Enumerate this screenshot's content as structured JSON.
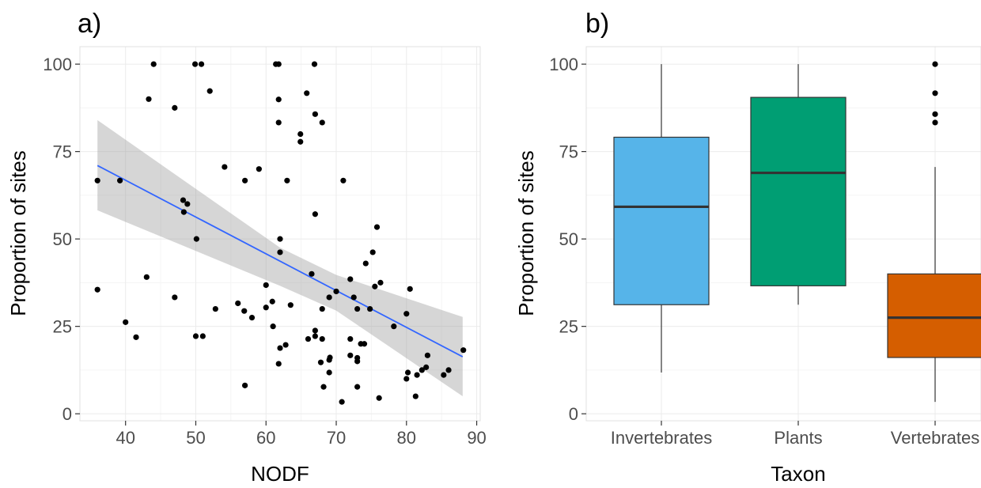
{
  "chart_data": [
    {
      "panel_label": "a)",
      "type": "scatter",
      "xlabel": "NODF",
      "ylabel": "Proportion of sites",
      "xlim": [
        33.5,
        90.5
      ],
      "ylim": [
        -2,
        105
      ],
      "x_ticks": [
        40,
        50,
        60,
        70,
        80,
        90
      ],
      "y_ticks": [
        0,
        25,
        50,
        75,
        100
      ],
      "grid": true,
      "colors": {
        "points": "#000000",
        "fit_line": "#3366ff",
        "ribbon": "#999999"
      },
      "points": [
        {
          "x": 36,
          "y": 66.7
        },
        {
          "x": 36,
          "y": 35.5
        },
        {
          "x": 39.2,
          "y": 66.7
        },
        {
          "x": 40,
          "y": 26.2
        },
        {
          "x": 41.5,
          "y": 21.9
        },
        {
          "x": 43,
          "y": 39.1
        },
        {
          "x": 43.3,
          "y": 90
        },
        {
          "x": 44,
          "y": 100
        },
        {
          "x": 47,
          "y": 87.5
        },
        {
          "x": 47,
          "y": 33.3
        },
        {
          "x": 48.2,
          "y": 61.1
        },
        {
          "x": 48.3,
          "y": 57.7
        },
        {
          "x": 48.8,
          "y": 60
        },
        {
          "x": 49.9,
          "y": 100
        },
        {
          "x": 50,
          "y": 22.2
        },
        {
          "x": 50.1,
          "y": 50
        },
        {
          "x": 50.8,
          "y": 100
        },
        {
          "x": 51,
          "y": 22.2
        },
        {
          "x": 52,
          "y": 92.3
        },
        {
          "x": 52.8,
          "y": 30
        },
        {
          "x": 54.1,
          "y": 70.6
        },
        {
          "x": 56,
          "y": 31.6
        },
        {
          "x": 56.9,
          "y": 29.4
        },
        {
          "x": 57,
          "y": 66.7
        },
        {
          "x": 57,
          "y": 8.1
        },
        {
          "x": 58,
          "y": 27.5
        },
        {
          "x": 59,
          "y": 70
        },
        {
          "x": 60,
          "y": 30.4
        },
        {
          "x": 60,
          "y": 36.8
        },
        {
          "x": 60.9,
          "y": 32.1
        },
        {
          "x": 61,
          "y": 25
        },
        {
          "x": 61.4,
          "y": 100
        },
        {
          "x": 61.8,
          "y": 100
        },
        {
          "x": 61.8,
          "y": 89.9
        },
        {
          "x": 61.8,
          "y": 83.3
        },
        {
          "x": 61.8,
          "y": 14.3
        },
        {
          "x": 62,
          "y": 50
        },
        {
          "x": 62,
          "y": 46.2
        },
        {
          "x": 62,
          "y": 18.8
        },
        {
          "x": 62.8,
          "y": 19.7
        },
        {
          "x": 63,
          "y": 66.7
        },
        {
          "x": 63.5,
          "y": 31.1
        },
        {
          "x": 64.9,
          "y": 80
        },
        {
          "x": 64.9,
          "y": 77.8
        },
        {
          "x": 65.8,
          "y": 91.7
        },
        {
          "x": 66,
          "y": 21.4
        },
        {
          "x": 66.5,
          "y": 40
        },
        {
          "x": 66.9,
          "y": 100
        },
        {
          "x": 67,
          "y": 85.7
        },
        {
          "x": 67,
          "y": 57.1
        },
        {
          "x": 67,
          "y": 23.8
        },
        {
          "x": 67,
          "y": 22.2
        },
        {
          "x": 67.8,
          "y": 14.7
        },
        {
          "x": 68,
          "y": 83.3
        },
        {
          "x": 68,
          "y": 30
        },
        {
          "x": 68,
          "y": 21.4
        },
        {
          "x": 68.2,
          "y": 7.7
        },
        {
          "x": 69,
          "y": 33.3
        },
        {
          "x": 69,
          "y": 15.4
        },
        {
          "x": 69,
          "y": 11.8
        },
        {
          "x": 69.1,
          "y": 16.1
        },
        {
          "x": 70,
          "y": 35
        },
        {
          "x": 70.8,
          "y": 3.4
        },
        {
          "x": 71,
          "y": 66.7
        },
        {
          "x": 72,
          "y": 38.5
        },
        {
          "x": 72,
          "y": 21.4
        },
        {
          "x": 72,
          "y": 16.7
        },
        {
          "x": 72.5,
          "y": 33.3
        },
        {
          "x": 73,
          "y": 30
        },
        {
          "x": 73,
          "y": 16
        },
        {
          "x": 73,
          "y": 15
        },
        {
          "x": 73,
          "y": 7.7
        },
        {
          "x": 73.5,
          "y": 20
        },
        {
          "x": 74,
          "y": 20
        },
        {
          "x": 74.2,
          "y": 43
        },
        {
          "x": 74.8,
          "y": 30
        },
        {
          "x": 75.2,
          "y": 46.2
        },
        {
          "x": 75.5,
          "y": 36.4
        },
        {
          "x": 75.8,
          "y": 53.4
        },
        {
          "x": 76.1,
          "y": 4.5
        },
        {
          "x": 76.3,
          "y": 37.5
        },
        {
          "x": 78.2,
          "y": 25
        },
        {
          "x": 80,
          "y": 28.6
        },
        {
          "x": 80,
          "y": 10
        },
        {
          "x": 80.2,
          "y": 11.8
        },
        {
          "x": 80.5,
          "y": 35.7
        },
        {
          "x": 81.3,
          "y": 5
        },
        {
          "x": 81.5,
          "y": 11.1
        },
        {
          "x": 82.2,
          "y": 12.5
        },
        {
          "x": 82.8,
          "y": 13.3
        },
        {
          "x": 83,
          "y": 16.7
        },
        {
          "x": 85.3,
          "y": 11.1
        },
        {
          "x": 86,
          "y": 12.5
        },
        {
          "x": 88.1,
          "y": 18.2
        }
      ],
      "fit_line": {
        "x": [
          36,
          88
        ],
        "y": [
          71,
          16.3
        ]
      },
      "confidence_band": {
        "x": [
          36,
          62,
          70,
          88
        ],
        "lower": [
          58.2,
          36.6,
          29.5,
          5
        ],
        "upper": [
          84,
          47.5,
          39.7,
          27.7
        ]
      }
    },
    {
      "panel_label": "b)",
      "type": "box",
      "xlabel": "Taxon",
      "ylabel": "Proportion of sites",
      "ylim": [
        -2,
        105
      ],
      "y_ticks": [
        0,
        25,
        50,
        75,
        100
      ],
      "grid": true,
      "categories": [
        "Invertebrates",
        "Plants",
        "Vertebrates"
      ],
      "boxes": [
        {
          "name": "Invertebrates",
          "color": "#56b4e9",
          "whisker_low": 11.8,
          "q1": 31.2,
          "median": 59.2,
          "q3": 79.1,
          "whisker_high": 100,
          "outliers": []
        },
        {
          "name": "Plants",
          "color": "#009e73",
          "whisker_low": 31.2,
          "q1": 36.6,
          "median": 68.9,
          "q3": 90.5,
          "whisker_high": 100,
          "outliers": []
        },
        {
          "name": "Vertebrates",
          "color": "#d55e00",
          "whisker_low": 3.4,
          "q1": 16.1,
          "median": 27.5,
          "q3": 40,
          "whisker_high": 70.6,
          "outliers": [
            100,
            91.7,
            85.7,
            83.3
          ]
        }
      ]
    }
  ]
}
